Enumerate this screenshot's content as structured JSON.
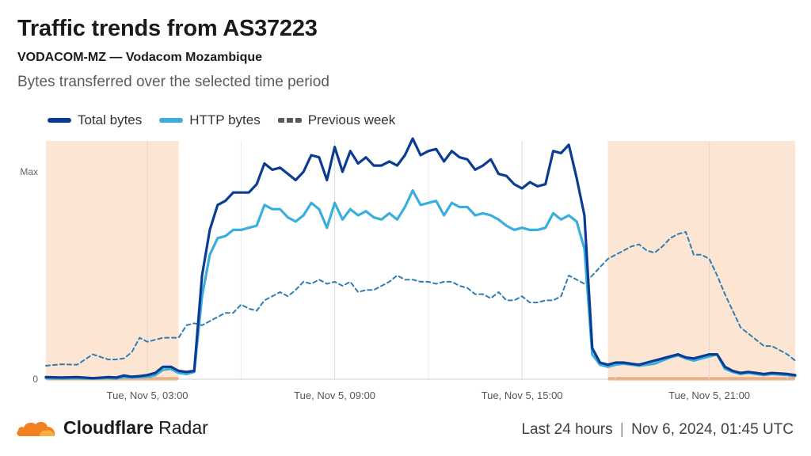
{
  "header": {
    "title": "Traffic trends from AS37223",
    "subtitle": "VODACOM-MZ — Vodacom Mozambique",
    "description": "Bytes transferred over the selected time period"
  },
  "footer": {
    "brand_bold": "Cloudflare",
    "brand_light": "Radar",
    "period": "Last 24 hours",
    "separator": "|",
    "timestamp": "Nov 6, 2024, 01:45 UTC",
    "logo_icon": "cloud-icon"
  },
  "colors": {
    "total": "#0a3d91",
    "http": "#3aaedc",
    "previous": "#2f7db3",
    "shade": "#fde5d3",
    "shade_line": "#f0a066",
    "grid": "#e3e3e3"
  },
  "chart_data": {
    "type": "line",
    "x_unit": "hours since Nov 4, 23:45 UTC (15-minute samples)",
    "x_range": [
      0,
      24
    ],
    "xticks": [
      {
        "at": 3.25,
        "label": "Tue, Nov 5, 03:00"
      },
      {
        "at": 9.25,
        "label": "Tue, Nov 5, 09:00"
      },
      {
        "at": 15.25,
        "label": "Tue, Nov 5, 15:00"
      },
      {
        "at": 21.25,
        "label": "Tue, Nov 5, 21:00"
      }
    ],
    "yticks": [
      {
        "at": 0,
        "label": "0"
      },
      {
        "at": 1,
        "label": "Max"
      }
    ],
    "ylim": [
      0,
      1.15
    ],
    "shaded_ranges": [
      [
        0,
        4.25
      ],
      [
        18,
        24
      ]
    ],
    "legend": [
      {
        "name": "Total bytes",
        "style": "solid-dark"
      },
      {
        "name": "HTTP bytes",
        "style": "solid-light"
      },
      {
        "name": "Previous week",
        "style": "dashed"
      }
    ],
    "series": [
      {
        "name": "Total bytes",
        "x": [
          0,
          0.5,
          1,
          1.5,
          2,
          2.25,
          2.5,
          2.75,
          3,
          3.25,
          3.5,
          3.75,
          4,
          4.25,
          4.5,
          4.75,
          5,
          5.25,
          5.5,
          5.75,
          6,
          6.25,
          6.5,
          6.75,
          7,
          7.25,
          7.5,
          7.75,
          8,
          8.25,
          8.5,
          8.75,
          9,
          9.25,
          9.5,
          9.75,
          10,
          10.25,
          10.5,
          10.75,
          11,
          11.25,
          11.5,
          11.75,
          12,
          12.25,
          12.5,
          12.75,
          13,
          13.25,
          13.5,
          13.75,
          14,
          14.25,
          14.5,
          14.75,
          15,
          15.25,
          15.5,
          15.75,
          16,
          16.25,
          16.5,
          16.75,
          17,
          17.25,
          17.5,
          17.75,
          18,
          18.25,
          18.5,
          18.75,
          19,
          19.25,
          19.5,
          19.75,
          20,
          20.25,
          20.5,
          20.75,
          21,
          21.25,
          21.5,
          21.75,
          22,
          22.25,
          22.5,
          22.75,
          23,
          23.25,
          23.5,
          23.75,
          24
        ],
        "y": [
          0.01,
          0.008,
          0.01,
          0.005,
          0.01,
          0.008,
          0.018,
          0.012,
          0.015,
          0.02,
          0.03,
          0.06,
          0.06,
          0.04,
          0.035,
          0.04,
          0.5,
          0.72,
          0.84,
          0.86,
          0.9,
          0.9,
          0.9,
          0.94,
          1.04,
          1.01,
          1.02,
          0.99,
          0.96,
          1.0,
          1.08,
          1.07,
          0.96,
          1.12,
          1.0,
          1.1,
          1.04,
          1.07,
          1.03,
          1.03,
          1.05,
          1.03,
          1.08,
          1.16,
          1.08,
          1.1,
          1.11,
          1.05,
          1.1,
          1.07,
          1.06,
          1.01,
          1.03,
          1.06,
          0.99,
          0.98,
          0.94,
          0.92,
          0.95,
          0.93,
          0.94,
          1.1,
          1.09,
          1.13,
          0.97,
          0.79,
          0.15,
          0.08,
          0.07,
          0.08,
          0.08,
          0.075,
          0.07,
          0.08,
          0.09,
          0.1,
          0.11,
          0.12,
          0.105,
          0.1,
          0.11,
          0.12,
          0.12,
          0.06,
          0.04,
          0.03,
          0.035,
          0.03,
          0.025,
          0.03,
          0.028,
          0.025,
          0.02
        ]
      },
      {
        "name": "HTTP bytes",
        "x": [
          0,
          0.5,
          1,
          1.5,
          2,
          2.25,
          2.5,
          2.75,
          3,
          3.25,
          3.5,
          3.75,
          4,
          4.25,
          4.5,
          4.75,
          5,
          5.25,
          5.5,
          5.75,
          6,
          6.25,
          6.5,
          6.75,
          7,
          7.25,
          7.5,
          7.75,
          8,
          8.25,
          8.5,
          8.75,
          9,
          9.25,
          9.5,
          9.75,
          10,
          10.25,
          10.5,
          10.75,
          11,
          11.25,
          11.5,
          11.75,
          12,
          12.25,
          12.5,
          12.75,
          13,
          13.25,
          13.5,
          13.75,
          14,
          14.25,
          14.5,
          14.75,
          15,
          15.25,
          15.5,
          15.75,
          16,
          16.25,
          16.5,
          16.75,
          17,
          17.25,
          17.5,
          17.75,
          18,
          18.25,
          18.5,
          18.75,
          19,
          19.25,
          19.5,
          19.75,
          20,
          20.25,
          20.5,
          20.75,
          21,
          21.25,
          21.5,
          21.75,
          22,
          22.25,
          22.5,
          22.75,
          23,
          23.25,
          23.5,
          23.75,
          24
        ],
        "y": [
          0.005,
          0.004,
          0.005,
          0.003,
          0.006,
          0.004,
          0.01,
          0.008,
          0.01,
          0.012,
          0.02,
          0.045,
          0.05,
          0.03,
          0.025,
          0.035,
          0.4,
          0.6,
          0.68,
          0.69,
          0.72,
          0.72,
          0.73,
          0.74,
          0.84,
          0.82,
          0.82,
          0.78,
          0.76,
          0.79,
          0.85,
          0.82,
          0.73,
          0.85,
          0.77,
          0.82,
          0.79,
          0.81,
          0.78,
          0.77,
          0.8,
          0.77,
          0.83,
          0.91,
          0.84,
          0.85,
          0.86,
          0.79,
          0.85,
          0.83,
          0.83,
          0.79,
          0.8,
          0.79,
          0.77,
          0.74,
          0.72,
          0.73,
          0.72,
          0.72,
          0.73,
          0.8,
          0.77,
          0.79,
          0.76,
          0.63,
          0.12,
          0.07,
          0.06,
          0.07,
          0.075,
          0.07,
          0.065,
          0.07,
          0.075,
          0.09,
          0.105,
          0.115,
          0.1,
          0.09,
          0.1,
          0.11,
          0.12,
          0.05,
          0.035,
          0.025,
          0.03,
          0.025,
          0.02,
          0.025,
          0.022,
          0.02,
          0.015
        ]
      },
      {
        "name": "Previous week",
        "dashed": true,
        "x": [
          0,
          0.5,
          1,
          1.5,
          2,
          2.25,
          2.5,
          2.75,
          3,
          3.25,
          3.5,
          3.75,
          4,
          4.25,
          4.5,
          4.75,
          5,
          5.25,
          5.5,
          5.75,
          6,
          6.25,
          6.5,
          6.75,
          7,
          7.25,
          7.5,
          7.75,
          8,
          8.25,
          8.5,
          8.75,
          9,
          9.25,
          9.5,
          9.75,
          10,
          10.25,
          10.5,
          10.75,
          11,
          11.25,
          11.5,
          11.75,
          12,
          12.25,
          12.5,
          12.75,
          13,
          13.25,
          13.5,
          13.75,
          14,
          14.25,
          14.5,
          14.75,
          15,
          15.25,
          15.5,
          15.75,
          16,
          16.25,
          16.5,
          16.75,
          17,
          17.25,
          17.5,
          17.75,
          18,
          18.25,
          18.5,
          18.75,
          19,
          19.25,
          19.5,
          19.75,
          20,
          20.25,
          20.5,
          20.75,
          21,
          21.25,
          21.5,
          21.75,
          22,
          22.25,
          22.5,
          22.75,
          23,
          23.25,
          23.5,
          23.75,
          24
        ],
        "y": [
          0.065,
          0.072,
          0.07,
          0.12,
          0.095,
          0.095,
          0.1,
          0.13,
          0.2,
          0.18,
          0.19,
          0.2,
          0.2,
          0.2,
          0.26,
          0.27,
          0.26,
          0.28,
          0.3,
          0.32,
          0.32,
          0.36,
          0.34,
          0.33,
          0.38,
          0.4,
          0.42,
          0.4,
          0.43,
          0.47,
          0.46,
          0.48,
          0.46,
          0.47,
          0.45,
          0.47,
          0.42,
          0.43,
          0.43,
          0.45,
          0.47,
          0.5,
          0.48,
          0.48,
          0.47,
          0.47,
          0.46,
          0.47,
          0.47,
          0.45,
          0.44,
          0.41,
          0.41,
          0.39,
          0.42,
          0.38,
          0.38,
          0.4,
          0.37,
          0.37,
          0.38,
          0.38,
          0.4,
          0.5,
          0.48,
          0.46,
          0.5,
          0.54,
          0.58,
          0.6,
          0.62,
          0.64,
          0.65,
          0.62,
          0.61,
          0.64,
          0.68,
          0.7,
          0.71,
          0.6,
          0.6,
          0.58,
          0.5,
          0.41,
          0.33,
          0.25,
          0.22,
          0.19,
          0.16,
          0.16,
          0.14,
          0.12,
          0.09
        ]
      }
    ]
  }
}
